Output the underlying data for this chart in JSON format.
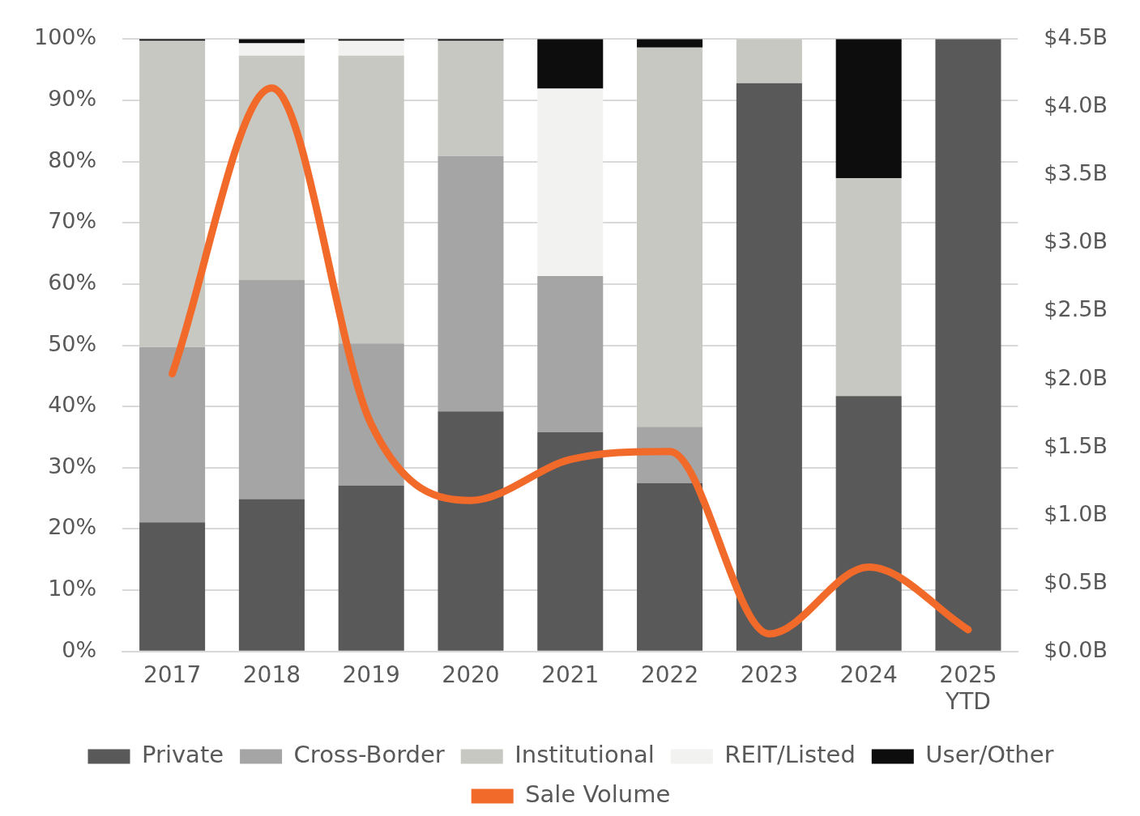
{
  "chart_data": {
    "type": "bar",
    "stacked": true,
    "categories": [
      "2017",
      "2018",
      "2019",
      "2020",
      "2021",
      "2022",
      "2023",
      "2024",
      "2025 YTD"
    ],
    "series": [
      {
        "name": "Private",
        "color": "#595959",
        "values": [
          21.1,
          24.9,
          27.1,
          39.2,
          35.8,
          27.5,
          92.8,
          41.7,
          100
        ]
      },
      {
        "name": "Cross-Border",
        "color": "#a5a5a5",
        "values": [
          28.6,
          35.8,
          23.2,
          41.7,
          25.5,
          9.2,
          0,
          0,
          0
        ]
      },
      {
        "name": "Institutional",
        "color": "#c8c8c3",
        "values": [
          50,
          36.6,
          47,
          18.8,
          0,
          61.9,
          7.2,
          35.6,
          0
        ]
      },
      {
        "name": "REIT/Listed",
        "color": "#f2f2f0",
        "values": [
          0,
          2,
          2.4,
          0,
          30.6,
          0,
          0,
          0,
          0
        ]
      },
      {
        "name": "User/Other",
        "color": "#0d0d0d",
        "values": [
          0.3,
          0.7,
          0.3,
          0.3,
          8.1,
          1.4,
          0,
          22.7,
          0
        ]
      },
      {
        "name": "Sale Volume",
        "type": "line",
        "axis": "y2",
        "color": "#f26a2a",
        "values": [
          2.04,
          4.14,
          1.67,
          1.11,
          1.41,
          1.47,
          0.13,
          0.62,
          0.16
        ]
      }
    ],
    "ylim": [
      0,
      100
    ],
    "yticks": [
      {
        "value": 0,
        "label": "0%"
      },
      {
        "value": 10,
        "label": "10%"
      },
      {
        "value": 20,
        "label": "20%"
      },
      {
        "value": 30,
        "label": "30%"
      },
      {
        "value": 40,
        "label": "40%"
      },
      {
        "value": 50,
        "label": "50%"
      },
      {
        "value": 60,
        "label": "60%"
      },
      {
        "value": 70,
        "label": "70%"
      },
      {
        "value": 80,
        "label": "80%"
      },
      {
        "value": 90,
        "label": "90%"
      },
      {
        "value": 100,
        "label": "100%"
      }
    ],
    "y2lim": [
      0,
      4.5
    ],
    "y2ticks": [
      {
        "value": 0,
        "label": "$0.0B"
      },
      {
        "value": 0.5,
        "label": "$0.5B"
      },
      {
        "value": 1,
        "label": "$1.0B"
      },
      {
        "value": 1.5,
        "label": "$1.5B"
      },
      {
        "value": 2,
        "label": "$2.0B"
      },
      {
        "value": 2.5,
        "label": "$2.5B"
      },
      {
        "value": 3,
        "label": "$3.0B"
      },
      {
        "value": 3.5,
        "label": "$3.5B"
      },
      {
        "value": 4,
        "label": "$4.0B"
      },
      {
        "value": 4.5,
        "label": "$4.5B"
      }
    ],
    "grid": "y",
    "legend": "bottom",
    "marker": "none"
  }
}
